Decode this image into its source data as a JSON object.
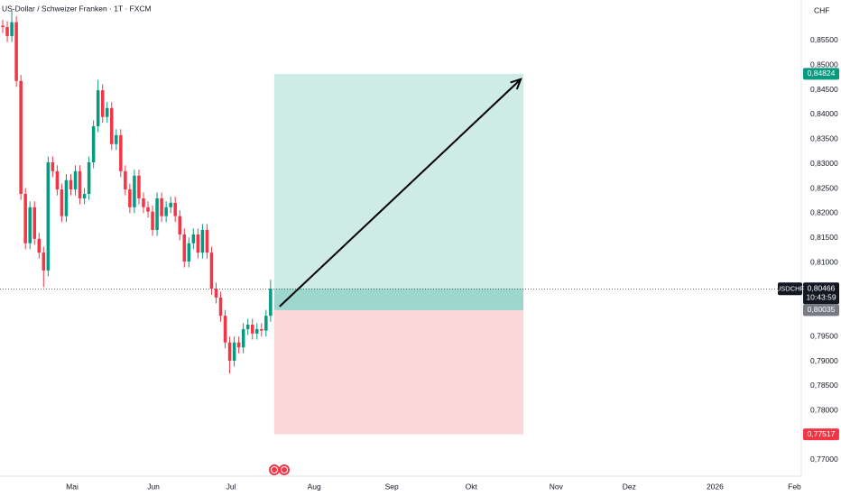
{
  "chart_data": {
    "type": "candlestick",
    "title": "US-Dollar / Schweizer Franken · 1T · FXCM",
    "currency": "CHF",
    "symbol": "USDCHF",
    "up_color": "#089981",
    "down_color": "#f23645",
    "x": [
      0,
      1,
      2,
      3,
      4,
      5,
      6,
      7,
      8,
      9,
      10,
      11,
      12,
      13,
      14,
      15,
      16,
      17,
      18,
      19,
      20,
      21,
      22,
      23,
      24,
      25,
      26,
      27,
      28,
      29,
      30,
      31,
      32,
      33,
      34,
      35,
      36,
      37,
      38,
      39,
      40,
      41,
      42,
      43,
      44,
      45,
      46,
      47,
      48,
      49,
      50,
      51,
      52,
      53,
      54,
      55,
      56,
      57,
      58,
      59
    ],
    "open": [
      0.858,
      0.8577,
      0.8559,
      0.8587,
      0.8468,
      0.8239,
      0.8139,
      0.8212,
      0.8148,
      0.812,
      0.8084,
      0.8303,
      0.8285,
      0.8248,
      0.8194,
      0.8267,
      0.8248,
      0.8285,
      0.823,
      0.8239,
      0.8303,
      0.8376,
      0.8449,
      0.8395,
      0.8413,
      0.834,
      0.8358,
      0.8285,
      0.8248,
      0.8212,
      0.8276,
      0.823,
      0.8212,
      0.8203,
      0.8166,
      0.823,
      0.8194,
      0.8212,
      0.8221,
      0.8194,
      0.8157,
      0.8102,
      0.8139,
      0.8157,
      0.812,
      0.8166,
      0.812,
      0.8047,
      0.8029,
      0.7992,
      0.7938,
      0.7901,
      0.7938,
      0.7928,
      0.7965,
      0.7974,
      0.7956,
      0.7965,
      0.7962,
      0.7992
    ],
    "high": [
      0.8592,
      0.8589,
      0.861,
      0.8599,
      0.848,
      0.8251,
      0.8224,
      0.8224,
      0.816,
      0.8132,
      0.8315,
      0.8315,
      0.8297,
      0.826,
      0.8279,
      0.8279,
      0.8297,
      0.8297,
      0.8251,
      0.8315,
      0.8388,
      0.847,
      0.8461,
      0.8425,
      0.8425,
      0.837,
      0.837,
      0.8297,
      0.826,
      0.8288,
      0.8288,
      0.8242,
      0.8224,
      0.8215,
      0.8242,
      0.8242,
      0.8224,
      0.8233,
      0.8233,
      0.8206,
      0.8169,
      0.8151,
      0.8169,
      0.8169,
      0.8178,
      0.8178,
      0.8132,
      0.8059,
      0.8041,
      0.8004,
      0.795,
      0.795,
      0.795,
      0.7977,
      0.7986,
      0.7986,
      0.7977,
      0.7977,
      0.8004,
      0.8065
    ],
    "low": [
      0.8565,
      0.8547,
      0.8547,
      0.8456,
      0.8227,
      0.8127,
      0.8127,
      0.8136,
      0.8108,
      0.805,
      0.8072,
      0.8273,
      0.8236,
      0.8182,
      0.8182,
      0.8236,
      0.8236,
      0.8218,
      0.8218,
      0.8227,
      0.8291,
      0.8364,
      0.8383,
      0.8383,
      0.8328,
      0.8328,
      0.8273,
      0.8236,
      0.82,
      0.82,
      0.8218,
      0.82,
      0.8191,
      0.8154,
      0.8154,
      0.8182,
      0.8182,
      0.82,
      0.8182,
      0.8145,
      0.809,
      0.809,
      0.8127,
      0.8108,
      0.8108,
      0.8108,
      0.8035,
      0.8017,
      0.798,
      0.7926,
      0.7875,
      0.7889,
      0.7916,
      0.7916,
      0.7953,
      0.7944,
      0.7944,
      0.795,
      0.795,
      0.798
    ],
    "close": [
      0.8577,
      0.8559,
      0.8587,
      0.8468,
      0.8239,
      0.8139,
      0.8212,
      0.8148,
      0.812,
      0.8084,
      0.8303,
      0.8285,
      0.8248,
      0.8194,
      0.8267,
      0.8248,
      0.8285,
      0.823,
      0.8239,
      0.8303,
      0.8376,
      0.8449,
      0.8395,
      0.8413,
      0.834,
      0.8358,
      0.8285,
      0.8248,
      0.8212,
      0.8276,
      0.823,
      0.8212,
      0.8203,
      0.8166,
      0.823,
      0.8194,
      0.8212,
      0.8221,
      0.8194,
      0.8157,
      0.8102,
      0.8139,
      0.8157,
      0.812,
      0.8166,
      0.812,
      0.8047,
      0.8029,
      0.7992,
      0.7938,
      0.7901,
      0.7938,
      0.7928,
      0.7965,
      0.7974,
      0.7956,
      0.7965,
      0.7962,
      0.7992,
      0.8047
    ],
    "xlim": [
      -0.6,
      175.9
    ],
    "xticks": [
      {
        "value": 15.3,
        "label": "Mai"
      },
      {
        "value": 33.2,
        "label": "Jun"
      },
      {
        "value": 50.3,
        "label": "Jul"
      },
      {
        "value": 68.6,
        "label": "Aug"
      },
      {
        "value": 85.7,
        "label": "Sep"
      },
      {
        "value": 103.2,
        "label": "Okt"
      },
      {
        "value": 121.9,
        "label": "Nov"
      },
      {
        "value": 138,
        "label": "Dez"
      },
      {
        "value": 156.9,
        "label": "2026"
      },
      {
        "value": 174.4,
        "label": "Feb"
      }
    ],
    "ylim": [
      0.7667,
      0.8632
    ],
    "yticks": [
      {
        "value": 0.77,
        "label": "0,77000"
      },
      {
        "value": 0.775,
        "label": "0,77500"
      },
      {
        "value": 0.78,
        "label": "0,78000"
      },
      {
        "value": 0.785,
        "label": "0,78500"
      },
      {
        "value": 0.79,
        "label": "0,79000"
      },
      {
        "value": 0.795,
        "label": "0,79500"
      },
      {
        "value": 0.8,
        "label": "0,80000"
      },
      {
        "value": 0.805,
        "label": "0,80500"
      },
      {
        "value": 0.81,
        "label": "0,81000"
      },
      {
        "value": 0.815,
        "label": "0,81500"
      },
      {
        "value": 0.82,
        "label": "0,82000"
      },
      {
        "value": 0.825,
        "label": "0,82500"
      },
      {
        "value": 0.83,
        "label": "0,83000"
      },
      {
        "value": 0.835,
        "label": "0,83500"
      },
      {
        "value": 0.84,
        "label": "0,84000"
      },
      {
        "value": 0.845,
        "label": "0,84500"
      },
      {
        "value": 0.85,
        "label": "0,85000"
      },
      {
        "value": 0.855,
        "label": "0,85500"
      }
    ],
    "last_price": {
      "value": 0.80466,
      "label": "0,80466"
    },
    "countdown": "10:43:59",
    "position": {
      "x_range": [
        59.8,
        114.7
      ],
      "entry": {
        "value": 0.80035,
        "label": "0,80035"
      },
      "target": {
        "value": 0.84824,
        "label": "0,84824"
      },
      "stop": {
        "value": 0.77517,
        "label": "0,77517"
      },
      "profit_color": "#089981",
      "loss_color": "#f23645",
      "entry_color": "#787b86"
    }
  }
}
